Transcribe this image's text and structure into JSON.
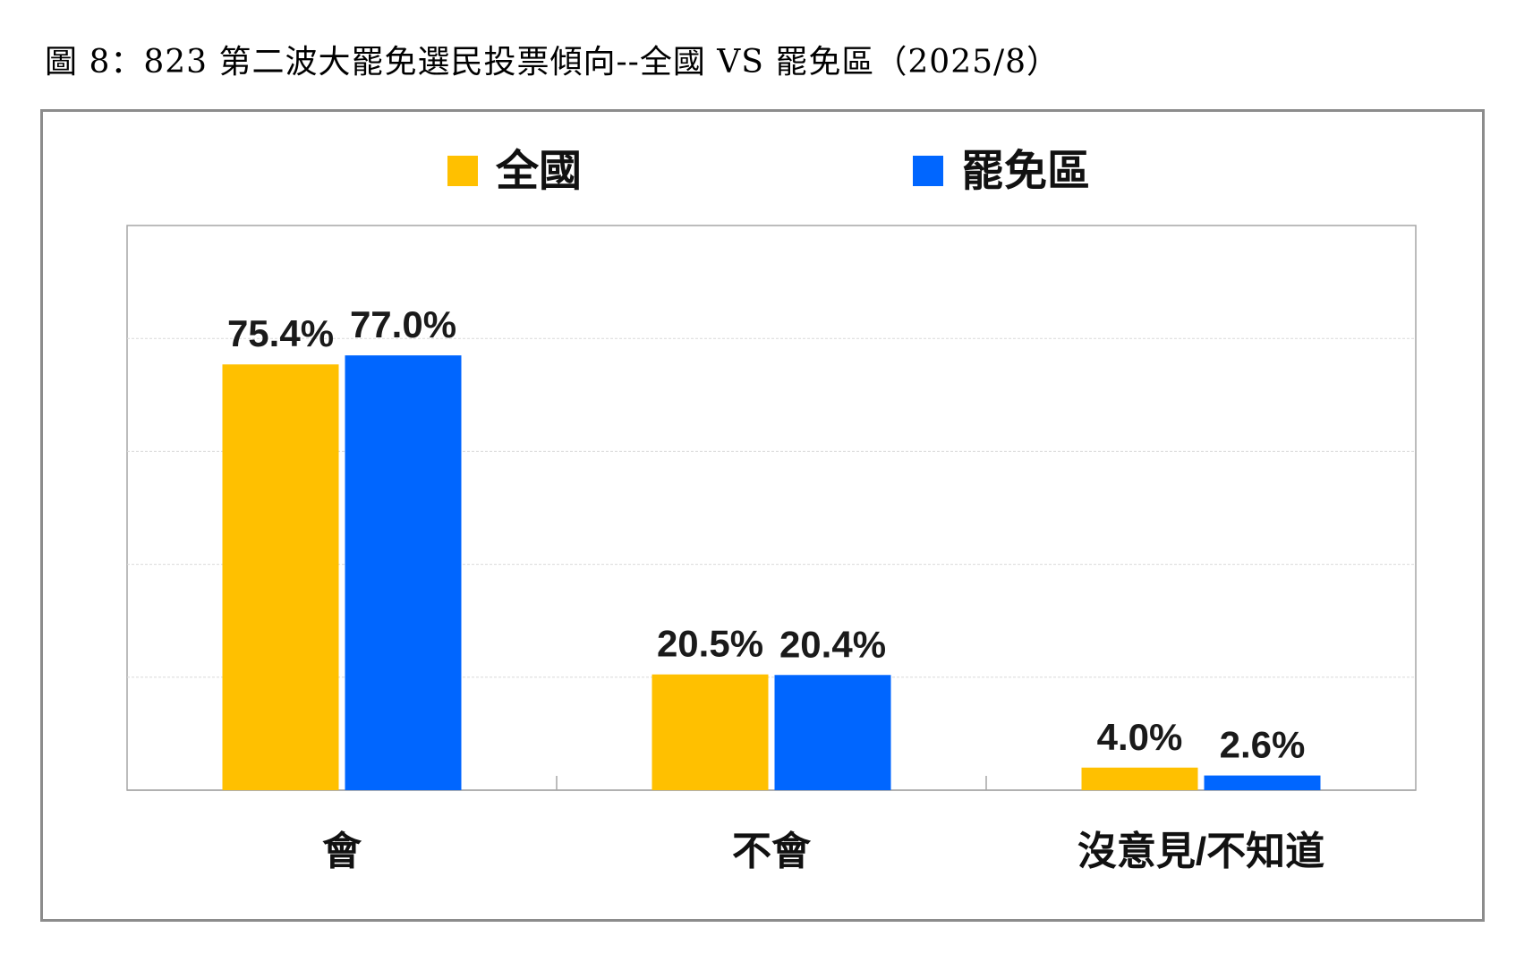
{
  "page_title": "圖 8：823 第二波大罷免選民投票傾向--全國 VS 罷免區（2025/8）",
  "colors": {
    "series_1": "#FFC000",
    "series_2": "#0066FF",
    "gridline": "#d9d9d9",
    "axis": "#a6a6a6",
    "frame": "#8c8c8c"
  },
  "chart_data": {
    "type": "bar",
    "title": "",
    "xlabel": "",
    "ylabel": "",
    "ylim": [
      0,
      100
    ],
    "grid": true,
    "legend_position": "top",
    "categories": [
      "會",
      "不會",
      "沒意見/不知道"
    ],
    "series": [
      {
        "name": "全國",
        "values": [
          75.4,
          20.5,
          4.0
        ],
        "labels": [
          "75.4%",
          "20.5%",
          "4.0%"
        ],
        "color": "#FFC000"
      },
      {
        "name": "罷免區",
        "values": [
          77.0,
          20.4,
          2.6
        ],
        "labels": [
          "77.0%",
          "20.4%",
          "2.6%"
        ],
        "color": "#0066FF"
      }
    ]
  }
}
